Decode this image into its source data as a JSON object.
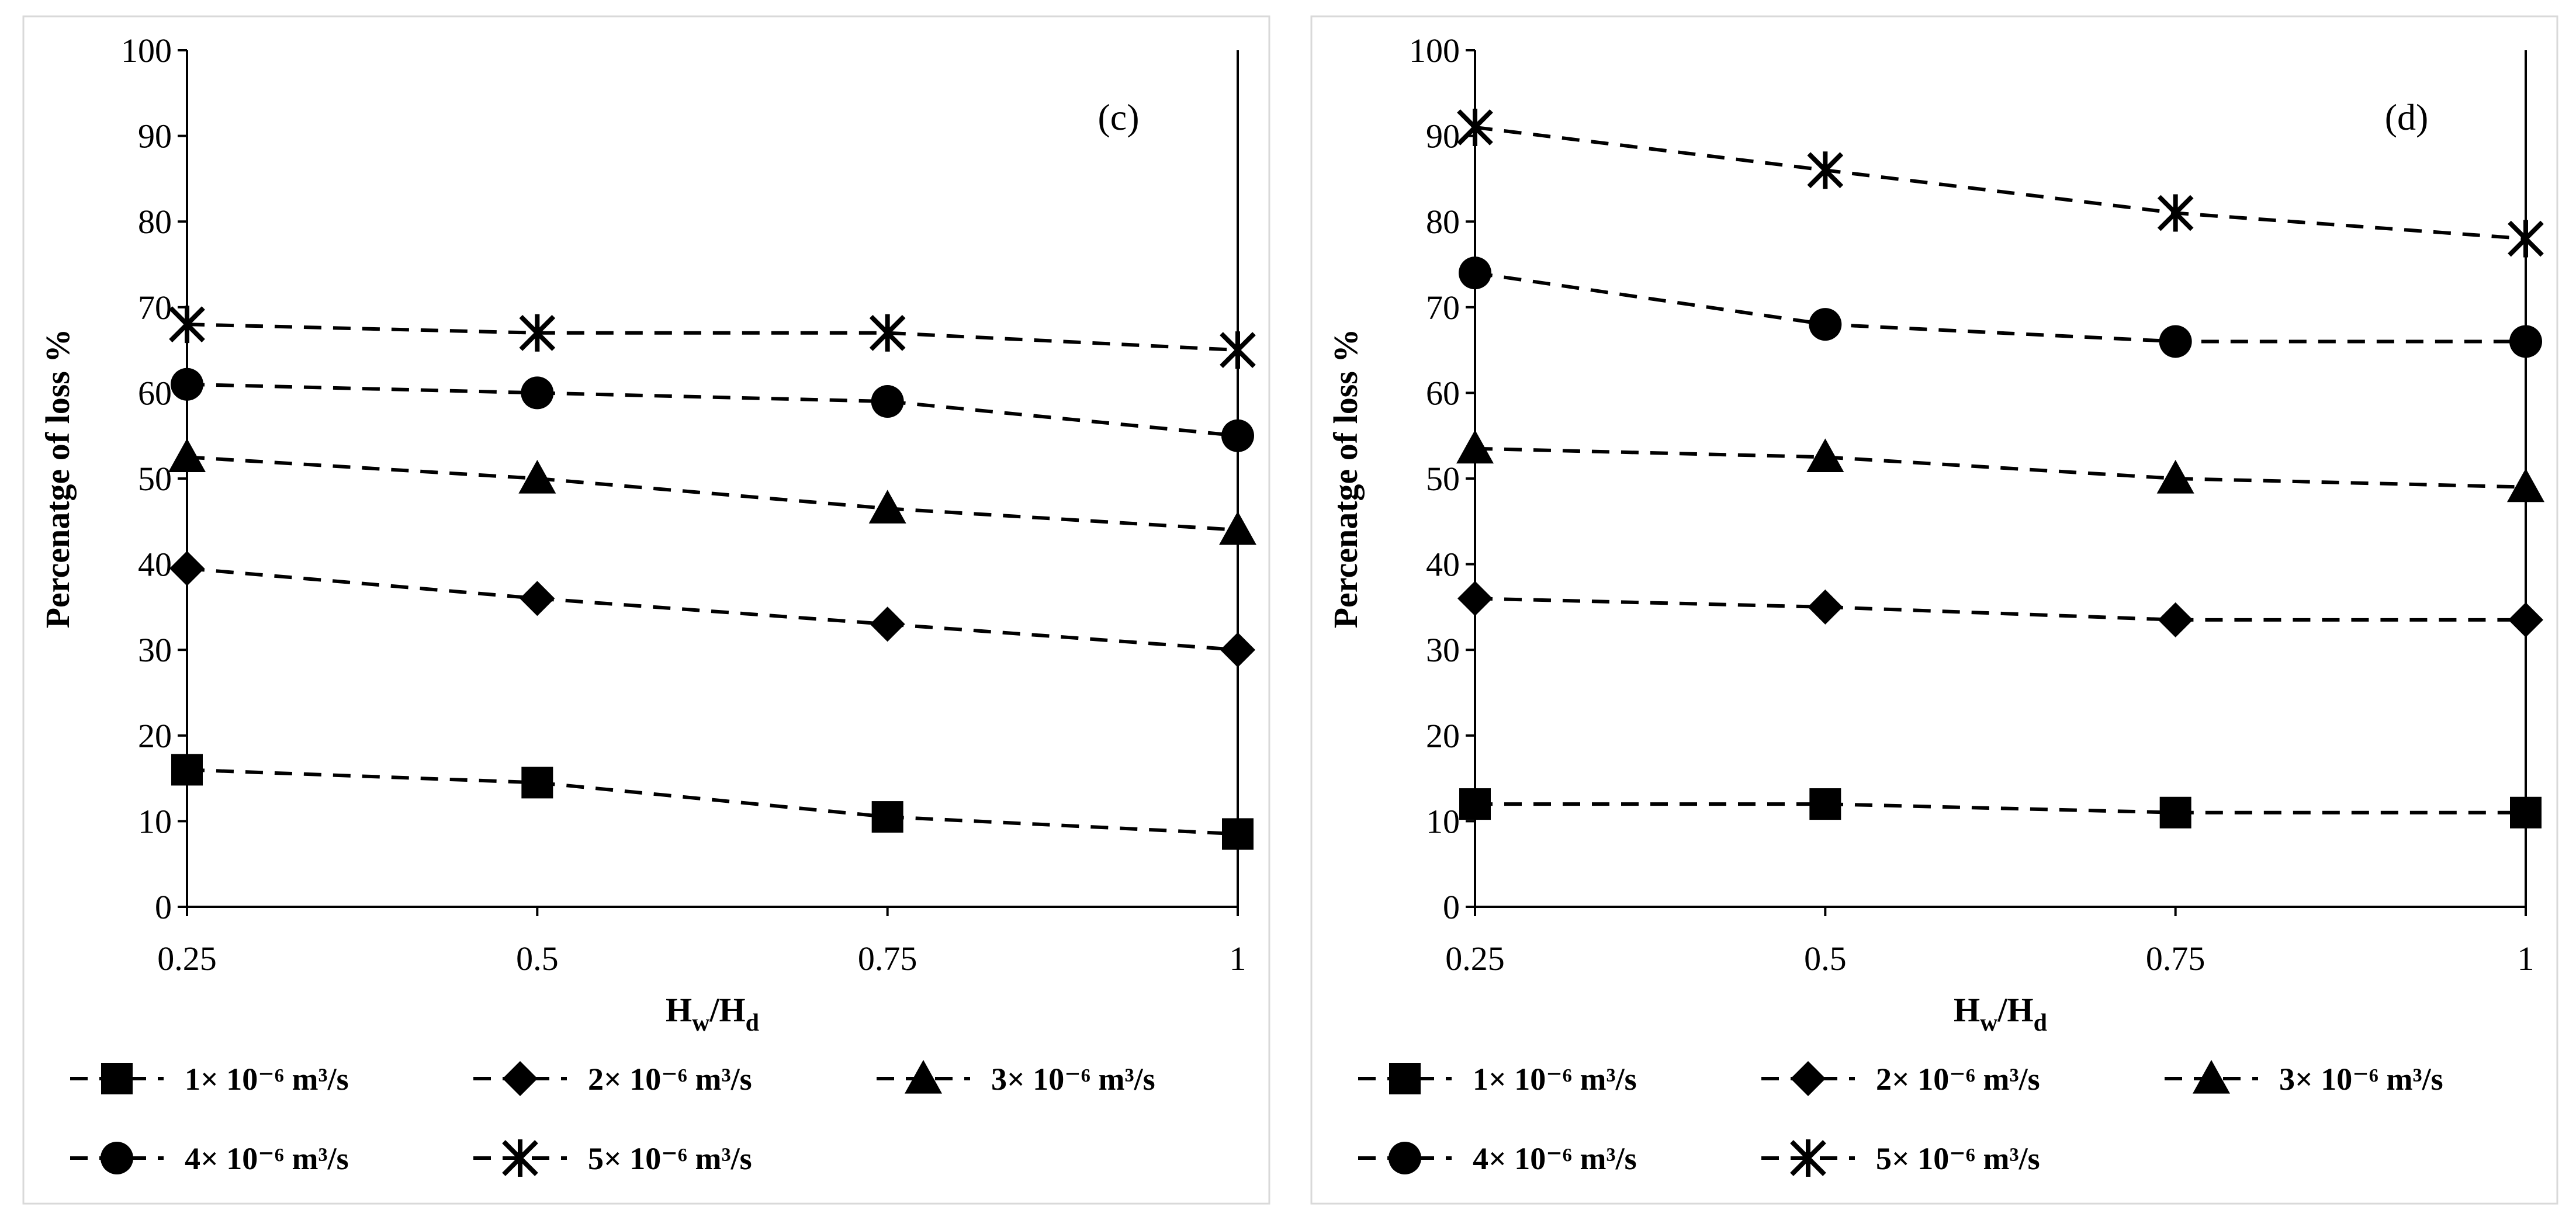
{
  "chart_data": [
    {
      "type": "line",
      "panel_label": "(c)",
      "xlabel_main": "H",
      "xlabel_sub1": "w",
      "xlabel_sep": "/H",
      "xlabel_sub2": "d",
      "ylabel": "Percenatge of loss %",
      "x": [
        0.25,
        0.5,
        0.75,
        1
      ],
      "xtick_labels": [
        "0.25",
        "0.5",
        "0.75",
        "1"
      ],
      "xlim": [
        0.25,
        1
      ],
      "ylim": [
        0,
        100
      ],
      "yticks": [
        0,
        10,
        20,
        30,
        40,
        50,
        60,
        70,
        80,
        90,
        100
      ],
      "ytick_labels": [
        "0",
        "10",
        "20",
        "30",
        "40",
        "50",
        "60",
        "70",
        "80",
        "90",
        "100"
      ],
      "grid": false,
      "legend_position": "bottom",
      "series": [
        {
          "name": "1× 10⁻⁶ m³/s",
          "marker": "square",
          "values": [
            16,
            14.5,
            10.5,
            8.5
          ]
        },
        {
          "name": "2× 10⁻⁶ m³/s",
          "marker": "diamond",
          "values": [
            39.5,
            36,
            33,
            30
          ]
        },
        {
          "name": "3× 10⁻⁶ m³/s",
          "marker": "triangle",
          "values": [
            52.5,
            50,
            46.5,
            44
          ]
        },
        {
          "name": "4× 10⁻⁶ m³/s",
          "marker": "circle",
          "values": [
            61,
            60,
            59,
            55
          ]
        },
        {
          "name": "5× 10⁻⁶ m³/s",
          "marker": "asterisk",
          "values": [
            68,
            67,
            67,
            65
          ]
        }
      ]
    },
    {
      "type": "line",
      "panel_label": "(d)",
      "xlabel_main": "H",
      "xlabel_sub1": "w",
      "xlabel_sep": "/H",
      "xlabel_sub2": "d",
      "ylabel": "Percenatge of loss %",
      "x": [
        0.25,
        0.5,
        0.75,
        1
      ],
      "xtick_labels": [
        "0.25",
        "0.5",
        "0.75",
        "1"
      ],
      "xlim": [
        0.25,
        1
      ],
      "ylim": [
        0,
        100
      ],
      "yticks": [
        0,
        10,
        20,
        30,
        40,
        50,
        60,
        70,
        80,
        90,
        100
      ],
      "ytick_labels": [
        "0",
        "10",
        "20",
        "30",
        "40",
        "50",
        "60",
        "70",
        "80",
        "90",
        "100"
      ],
      "grid": false,
      "legend_position": "bottom",
      "series": [
        {
          "name": "1× 10⁻⁶ m³/s",
          "marker": "square",
          "values": [
            12,
            12,
            11,
            11
          ]
        },
        {
          "name": "2× 10⁻⁶ m³/s",
          "marker": "diamond",
          "values": [
            36,
            35,
            33.5,
            33.5
          ]
        },
        {
          "name": "3× 10⁻⁶ m³/s",
          "marker": "triangle",
          "values": [
            53.5,
            52.5,
            50,
            49
          ]
        },
        {
          "name": "4× 10⁻⁶ m³/s",
          "marker": "circle",
          "values": [
            74,
            68,
            66,
            66
          ]
        },
        {
          "name": "5× 10⁻⁶ m³/s",
          "marker": "asterisk",
          "values": [
            91,
            86,
            81,
            78
          ]
        }
      ]
    }
  ],
  "colors": {
    "ink": "#000000",
    "frame": "#d9d9d9"
  }
}
